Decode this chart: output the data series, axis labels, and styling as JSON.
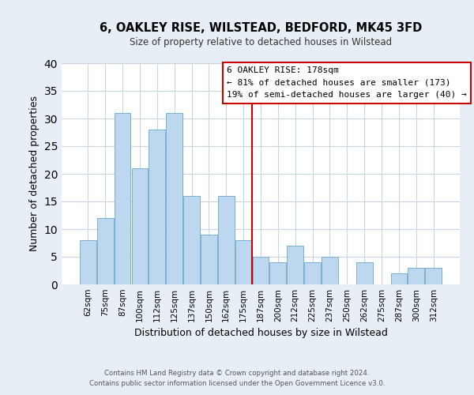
{
  "title": "6, OAKLEY RISE, WILSTEAD, BEDFORD, MK45 3FD",
  "subtitle": "Size of property relative to detached houses in Wilstead",
  "xlabel": "Distribution of detached houses by size in Wilstead",
  "ylabel": "Number of detached properties",
  "bar_labels": [
    "62sqm",
    "75sqm",
    "87sqm",
    "100sqm",
    "112sqm",
    "125sqm",
    "137sqm",
    "150sqm",
    "162sqm",
    "175sqm",
    "187sqm",
    "200sqm",
    "212sqm",
    "225sqm",
    "237sqm",
    "250sqm",
    "262sqm",
    "275sqm",
    "287sqm",
    "300sqm",
    "312sqm"
  ],
  "bar_values": [
    8,
    12,
    31,
    21,
    28,
    31,
    16,
    9,
    16,
    8,
    5,
    4,
    7,
    4,
    5,
    0,
    4,
    0,
    2,
    3,
    3
  ],
  "bar_color": "#bdd7ee",
  "bar_edge_color": "#7ab0d4",
  "vline_x_index": 9.5,
  "vline_color": "#cc0000",
  "ylim": [
    0,
    40
  ],
  "yticks": [
    0,
    5,
    10,
    15,
    20,
    25,
    30,
    35,
    40
  ],
  "annotation_title": "6 OAKLEY RISE: 178sqm",
  "annotation_line1": "← 81% of detached houses are smaller (173)",
  "annotation_line2": "19% of semi-detached houses are larger (40) →",
  "annotation_box_color": "#ffffff",
  "annotation_box_edgecolor": "#cc0000",
  "footer1": "Contains HM Land Registry data © Crown copyright and database right 2024.",
  "footer2": "Contains public sector information licensed under the Open Government Licence v3.0.",
  "background_color": "#e8eef5",
  "plot_background_color": "#ffffff",
  "grid_color": "#c8d4e0"
}
